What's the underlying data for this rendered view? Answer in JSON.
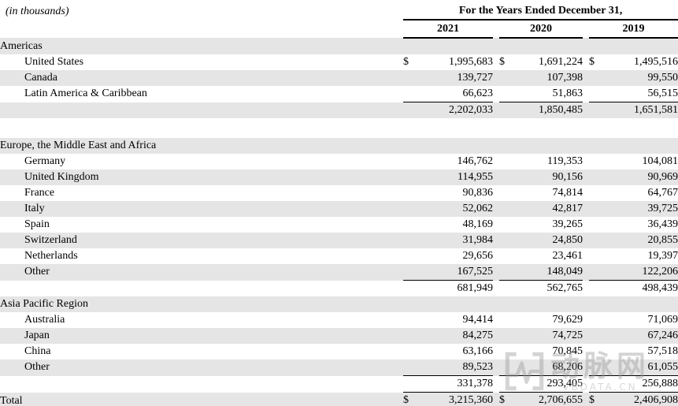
{
  "meta": {
    "units_note": "(in thousands)"
  },
  "header": {
    "title": "For the Years Ended December 31,",
    "years": [
      "2021",
      "2020",
      "2019"
    ]
  },
  "currency_symbol": "$",
  "colors": {
    "row_shade": "#e5e5e5",
    "border": "#000000",
    "text": "#000000",
    "watermark": "#9a9a9a"
  },
  "chart_data": {
    "type": "table",
    "title": "Revenue by geography, for the years ended December 31",
    "columns": [
      "2021",
      "2020",
      "2019"
    ],
    "sections": [
      {
        "name": "Americas",
        "rows": [
          {
            "label": "United States",
            "values": [
              1995683,
              1691224,
              1495516
            ]
          },
          {
            "label": "Canada",
            "values": [
              139727,
              107398,
              99550
            ]
          },
          {
            "label": "Latin America & Caribbean",
            "values": [
              66623,
              51863,
              56515
            ]
          }
        ],
        "subtotal": [
          2202033,
          1850485,
          1651581
        ]
      },
      {
        "name": "Europe, the Middle East and Africa",
        "rows": [
          {
            "label": "Germany",
            "values": [
              146762,
              119353,
              104081
            ]
          },
          {
            "label": "United Kingdom",
            "values": [
              114955,
              90156,
              90969
            ]
          },
          {
            "label": "France",
            "values": [
              90836,
              74814,
              64767
            ]
          },
          {
            "label": "Italy",
            "values": [
              52062,
              42817,
              39725
            ]
          },
          {
            "label": "Spain",
            "values": [
              48169,
              39265,
              36439
            ]
          },
          {
            "label": "Switzerland",
            "values": [
              31984,
              24850,
              20855
            ]
          },
          {
            "label": "Netherlands",
            "values": [
              29656,
              23461,
              19397
            ]
          },
          {
            "label": "Other",
            "values": [
              167525,
              148049,
              122206
            ]
          }
        ],
        "subtotal": [
          681949,
          562765,
          498439
        ]
      },
      {
        "name": "Asia Pacific Region",
        "rows": [
          {
            "label": "Australia",
            "values": [
              94414,
              79629,
              71069
            ]
          },
          {
            "label": "Japan",
            "values": [
              84275,
              74725,
              67246
            ]
          },
          {
            "label": "China",
            "values": [
              63166,
              70845,
              57518
            ]
          },
          {
            "label": "Other",
            "values": [
              89523,
              68206,
              61055
            ]
          }
        ],
        "subtotal": [
          331378,
          293405,
          256888
        ]
      }
    ],
    "total": {
      "label": "Total",
      "values": [
        3215360,
        2706655,
        2406908
      ]
    }
  },
  "rows": [
    {
      "type": "section",
      "label": "Americas",
      "shaded": true
    },
    {
      "type": "data",
      "label": "United States",
      "indent": true,
      "dollar": true,
      "shaded": false,
      "values": [
        "1,995,683",
        "1,691,224",
        "1,495,516"
      ]
    },
    {
      "type": "data",
      "label": "Canada",
      "indent": true,
      "shaded": true,
      "values": [
        "139,727",
        "107,398",
        "99,550"
      ]
    },
    {
      "type": "data",
      "label": "Latin America & Caribbean",
      "indent": true,
      "shaded": false,
      "underline": true,
      "values": [
        "66,623",
        "51,863",
        "56,515"
      ]
    },
    {
      "type": "subtotal",
      "label": "",
      "shaded": true,
      "values": [
        "2,202,033",
        "1,850,485",
        "1,651,581"
      ]
    },
    {
      "type": "spacer"
    },
    {
      "type": "section",
      "label": "Europe, the Middle East and Africa",
      "shaded": true
    },
    {
      "type": "data",
      "label": "Germany",
      "indent": true,
      "shaded": false,
      "values": [
        "146,762",
        "119,353",
        "104,081"
      ]
    },
    {
      "type": "data",
      "label": "United Kingdom",
      "indent": true,
      "shaded": true,
      "values": [
        "114,955",
        "90,156",
        "90,969"
      ]
    },
    {
      "type": "data",
      "label": "France",
      "indent": true,
      "shaded": false,
      "values": [
        "90,836",
        "74,814",
        "64,767"
      ]
    },
    {
      "type": "data",
      "label": "Italy",
      "indent": true,
      "shaded": true,
      "values": [
        "52,062",
        "42,817",
        "39,725"
      ]
    },
    {
      "type": "data",
      "label": "Spain",
      "indent": true,
      "shaded": false,
      "values": [
        "48,169",
        "39,265",
        "36,439"
      ]
    },
    {
      "type": "data",
      "label": "Switzerland",
      "indent": true,
      "shaded": true,
      "values": [
        "31,984",
        "24,850",
        "20,855"
      ]
    },
    {
      "type": "data",
      "label": "Netherlands",
      "indent": true,
      "shaded": false,
      "values": [
        "29,656",
        "23,461",
        "19,397"
      ]
    },
    {
      "type": "data",
      "label": "Other",
      "indent": true,
      "shaded": true,
      "underline": true,
      "values": [
        "167,525",
        "148,049",
        "122,206"
      ]
    },
    {
      "type": "subtotal",
      "label": "",
      "shaded": false,
      "values": [
        "681,949",
        "562,765",
        "498,439"
      ]
    },
    {
      "type": "section",
      "label": "Asia Pacific Region",
      "shaded": true
    },
    {
      "type": "data",
      "label": "Australia",
      "indent": true,
      "shaded": false,
      "values": [
        "94,414",
        "79,629",
        "71,069"
      ]
    },
    {
      "type": "data",
      "label": "Japan",
      "indent": true,
      "shaded": true,
      "values": [
        "84,275",
        "74,725",
        "67,246"
      ]
    },
    {
      "type": "data",
      "label": "China",
      "indent": true,
      "shaded": false,
      "values": [
        "63,166",
        "70,845",
        "57,518"
      ]
    },
    {
      "type": "data",
      "label": "Other",
      "indent": true,
      "shaded": true,
      "underline": true,
      "values": [
        "89,523",
        "68,206",
        "61,055"
      ]
    },
    {
      "type": "subtotal",
      "label": "",
      "shaded": false,
      "underline": true,
      "values": [
        "331,378",
        "293,405",
        "256,888"
      ]
    },
    {
      "type": "total",
      "label": "Total",
      "dollar": true,
      "shaded": true,
      "double_underline": true,
      "values": [
        "3,215,360",
        "2,706,655",
        "2,406,908"
      ]
    }
  ],
  "watermark": {
    "logo": "vbdata-pulse-logo",
    "cn_text": "动脉网",
    "sub_text": "VBDATA.CN"
  }
}
